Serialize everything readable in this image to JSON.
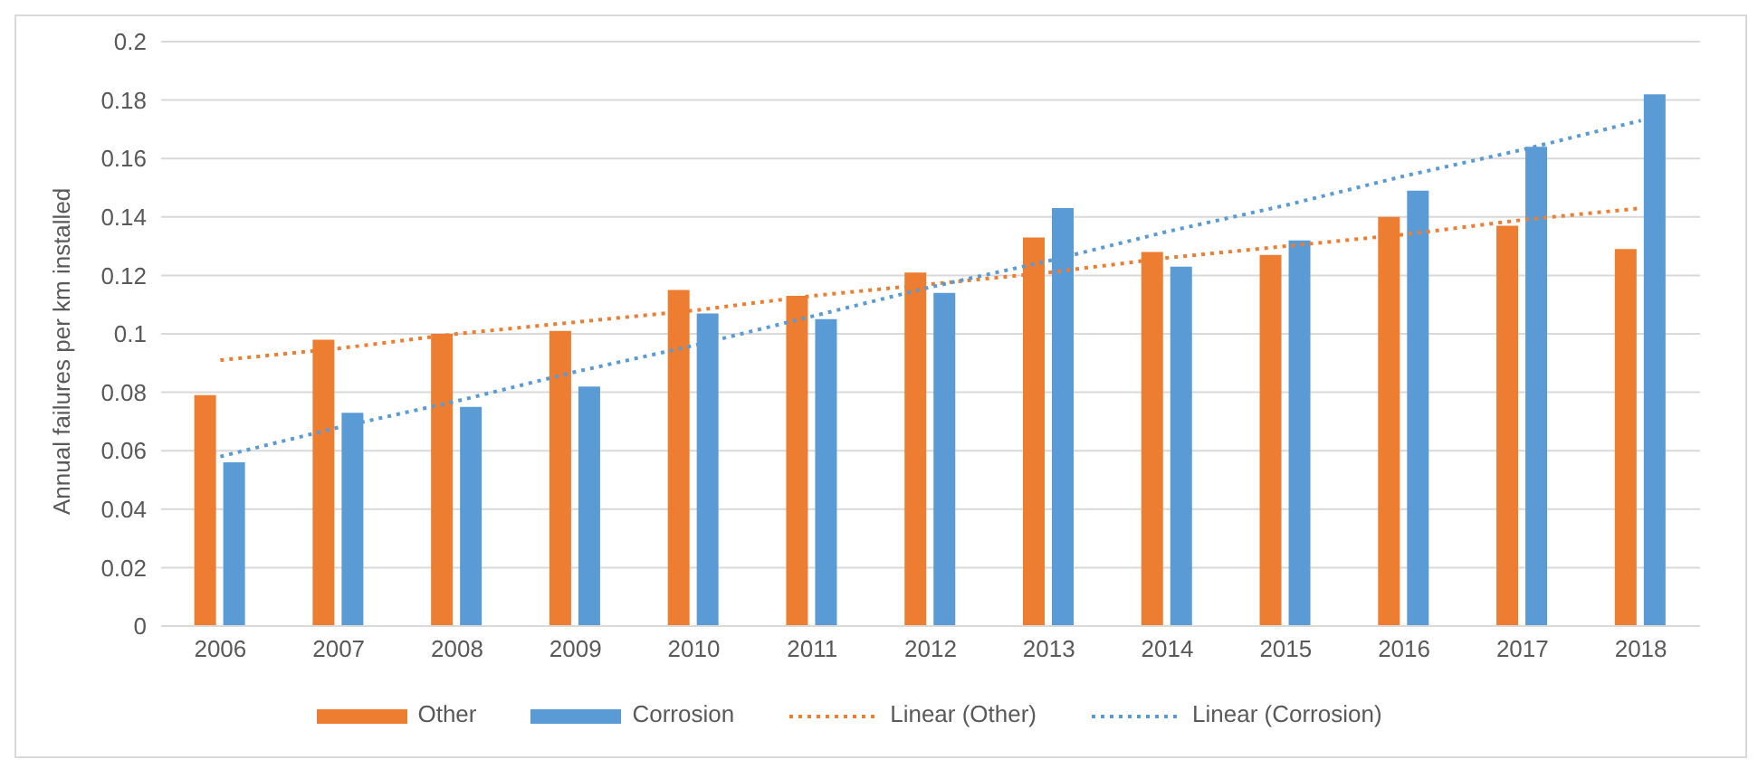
{
  "chart_data": {
    "type": "bar",
    "ylabel": "Annual failures per km installed",
    "categories": [
      "2006",
      "2007",
      "2008",
      "2009",
      "2010",
      "2011",
      "2012",
      "2013",
      "2014",
      "2015",
      "2016",
      "2017",
      "2018"
    ],
    "series": [
      {
        "name": "Other",
        "color": "#ed7d31",
        "values": [
          0.079,
          0.098,
          0.1,
          0.101,
          0.115,
          0.113,
          0.121,
          0.133,
          0.128,
          0.127,
          0.14,
          0.137,
          0.129
        ]
      },
      {
        "name": "Corrosion",
        "color": "#5b9bd5",
        "values": [
          0.056,
          0.073,
          0.075,
          0.082,
          0.107,
          0.105,
          0.114,
          0.143,
          0.123,
          0.132,
          0.149,
          0.164,
          0.182
        ]
      },
      {
        "name": "Linear (Other)",
        "type": "line",
        "color": "#ed7d31",
        "line_style": "dotted",
        "values": [
          0.091,
          0.095,
          0.1,
          0.104,
          0.108,
          0.113,
          0.117,
          0.121,
          0.126,
          0.13,
          0.134,
          0.139,
          0.143
        ]
      },
      {
        "name": "Linear (Corrosion)",
        "type": "line",
        "color": "#5b9bd5",
        "line_style": "dotted",
        "values": [
          0.058,
          0.068,
          0.077,
          0.087,
          0.096,
          0.106,
          0.116,
          0.125,
          0.135,
          0.144,
          0.154,
          0.163,
          0.173
        ]
      }
    ],
    "ylim": [
      0,
      0.2
    ],
    "yticks": [
      0,
      0.02,
      0.04,
      0.06,
      0.08,
      0.1,
      0.12,
      0.14,
      0.16,
      0.18,
      0.2
    ],
    "grid": "y",
    "legend": "bottom",
    "marker": "none"
  }
}
